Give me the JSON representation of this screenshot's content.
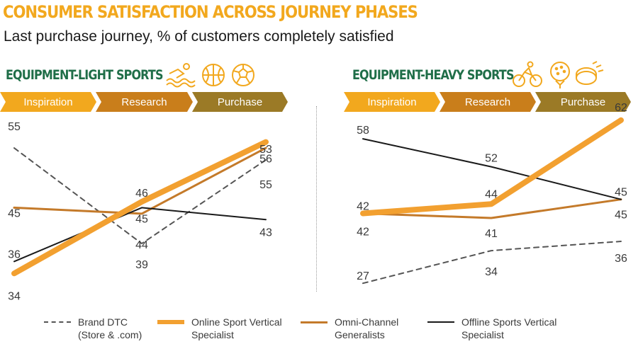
{
  "header": {
    "title": "CONSUMER SATISFACTION ACROSS JOURNEY PHASES",
    "subtitle": "Last purchase journey, % of customers completely satisfied"
  },
  "colors": {
    "title": "#F2A81E",
    "panel_title": "#1F6E48",
    "phase_1": "#F2A81E",
    "phase_2": "#C97E1B",
    "phase_3": "#9B7A26",
    "brand_dtc": "#555555",
    "online_vertical": "#F2A030",
    "omni_channel": "#C47A2A",
    "offline_vertical": "#1a1a1a"
  },
  "chart_data": [
    {
      "type": "line",
      "title": "EQUIPMENT-LIGHT SPORTS",
      "icons": [
        "swimmer-icon",
        "basketball-icon",
        "soccer-ball-icon"
      ],
      "categories": [
        "Inspiration",
        "Research",
        "Purchase"
      ],
      "ylim": [
        30,
        62
      ],
      "series": [
        {
          "name": "Brand DTC (Store & .com)",
          "values": [
            55,
            39,
            53
          ],
          "style": "dashed"
        },
        {
          "name": "Online Sport Vertical Specialist",
          "values": [
            34,
            46,
            56
          ],
          "style": "thick"
        },
        {
          "name": "Omni-Channel Generalists",
          "values": [
            45,
            44,
            55
          ],
          "style": "medium"
        },
        {
          "name": "Offline Sports Vertical Specialist",
          "values": [
            36,
            45,
            43
          ],
          "style": "thin"
        }
      ]
    },
    {
      "type": "line",
      "title": "EQUIPMENT-HEAVY SPORTS",
      "icons": [
        "cyclist-icon",
        "golf-ball-icon",
        "hockey-puck-icon"
      ],
      "categories": [
        "Inspiration",
        "Research",
        "Purchase"
      ],
      "ylim": [
        24,
        65
      ],
      "series": [
        {
          "name": "Brand DTC (Store & .com)",
          "values": [
            27,
            34,
            36
          ],
          "style": "dashed"
        },
        {
          "name": "Online Sport Vertical Specialist",
          "values": [
            42,
            44,
            62
          ],
          "style": "thick"
        },
        {
          "name": "Omni-Channel Generalists",
          "values": [
            42,
            41,
            45
          ],
          "style": "medium"
        },
        {
          "name": "Offline Sports Vertical Specialist",
          "values": [
            58,
            52,
            45
          ],
          "style": "thin"
        }
      ]
    }
  ],
  "legend": [
    {
      "line1": "Brand DTC",
      "line2": "(Store & .com)"
    },
    {
      "line1": "Online Sport Vertical",
      "line2": "Specialist"
    },
    {
      "line1": "Omni-Channel",
      "line2": "Generalists"
    },
    {
      "line1": "Offline Sports Vertical",
      "line2": "Specialist"
    }
  ]
}
